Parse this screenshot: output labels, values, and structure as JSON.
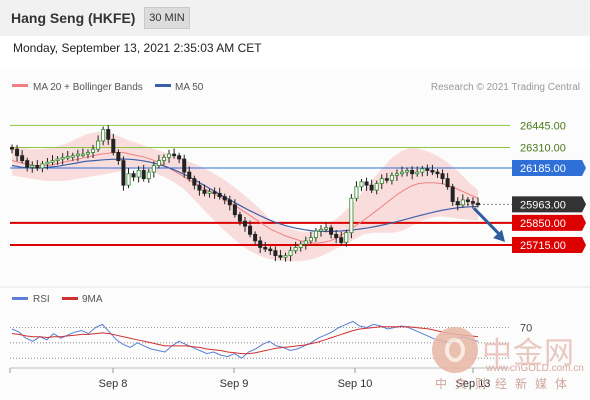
{
  "header": {
    "instrument": "Hang Seng (HKFE)",
    "timeframe": "30 MIN",
    "datetime": "Monday, September 13, 2021 2:35:03 AM CET"
  },
  "legend": {
    "ma20_label": "MA 20 + Bollinger Bands",
    "ma50_label": "MA 50",
    "credit": "Research © 2021 Trading Central",
    "rsi_label": "RSI",
    "ma9_label": "9MA"
  },
  "colors": {
    "ma20": "#f08080",
    "bollinger_fill": "#f8d3d3",
    "ma50": "#3d5fa8",
    "resistance": "#8cc63f",
    "pivot_blue": "#2e6fd8",
    "support": "#dd0000",
    "arrow": "#2f5d9e",
    "rsi": "#5b7fd6",
    "rsi_ma": "#d03030"
  },
  "chart_data": [
    {
      "type": "candlestick",
      "x_labels": [
        "Sep 8",
        "Sep 9",
        "Sep 10",
        "Sep 13"
      ],
      "price_levels": [
        {
          "value": 26445.0,
          "label": "26445.00",
          "kind": "resistance"
        },
        {
          "value": 26310.0,
          "label": "26310.00",
          "kind": "resistance"
        },
        {
          "value": 26185.0,
          "label": "26185.00",
          "kind": "pivot"
        },
        {
          "value": 25963.0,
          "label": "25963.00",
          "kind": "last"
        },
        {
          "value": 25850.0,
          "label": "25850.00",
          "kind": "support"
        },
        {
          "value": 25715.0,
          "label": "25715.00",
          "kind": "support"
        }
      ],
      "ylim": [
        25550,
        26600
      ],
      "closes": [
        26300,
        26260,
        26230,
        26190,
        26200,
        26185,
        26210,
        26220,
        26230,
        26240,
        26250,
        26255,
        26260,
        26270,
        26270,
        26280,
        26300,
        26350,
        26420,
        26360,
        26280,
        26230,
        26080,
        26150,
        26130,
        26170,
        26120,
        26160,
        26200,
        26230,
        26250,
        26270,
        26260,
        26240,
        26160,
        26120,
        26080,
        26050,
        26030,
        26040,
        26030,
        26010,
        25990,
        25960,
        25900,
        25860,
        25830,
        25780,
        25740,
        25700,
        25690,
        25680,
        25650,
        25640,
        25650,
        25680,
        25700,
        25720,
        25740,
        25760,
        25800,
        25810,
        25820,
        25780,
        25760,
        25730,
        25790,
        26000,
        26070,
        26100,
        26080,
        26050,
        26090,
        26120,
        26110,
        26140,
        26150,
        26160,
        26170,
        26150,
        26160,
        26180,
        26170,
        26160,
        26150,
        26120,
        26070,
        25980,
        25960,
        25990,
        25980,
        25970,
        25963
      ],
      "ma20": [
        26230,
        26220,
        26210,
        26200,
        26200,
        26200,
        26210,
        26220,
        26230,
        26240,
        26250,
        26260,
        26270,
        26275,
        26280,
        26280,
        26270,
        26260,
        26250,
        26235,
        26215,
        26190,
        26165,
        26140,
        26110,
        26085,
        26060,
        26035,
        26010,
        25985,
        25960,
        25930,
        25900,
        25870,
        25840,
        25810,
        25790,
        25770,
        25755,
        25740,
        25730,
        25725,
        25730,
        25740,
        25760,
        25790,
        25820,
        25850,
        25880,
        25915,
        25950,
        25985,
        26020,
        26050,
        26075,
        26090,
        26095,
        26095,
        26090,
        26080,
        26060,
        26040,
        26020,
        26000
      ],
      "bb_upper": [
        26320,
        26310,
        26300,
        26300,
        26305,
        26320,
        26340,
        26370,
        26395,
        26405,
        26400,
        26385,
        26360,
        26340,
        26320,
        26300,
        26280,
        26260,
        26240,
        26215,
        26190,
        26160,
        26125,
        26085,
        26040,
        25990,
        25940,
        25880,
        25840,
        25820,
        25800,
        25795,
        25805,
        25830,
        25870,
        25920,
        25980,
        26050,
        26120,
        26190,
        26250,
        26290,
        26310,
        26300,
        26280,
        26250,
        26210,
        26160,
        26100,
        26050
      ],
      "bb_lower": [
        26140,
        26130,
        26120,
        26110,
        26105,
        26105,
        26110,
        26120,
        26130,
        26140,
        26150,
        26160,
        26175,
        26180,
        26170,
        26155,
        26130,
        26100,
        26060,
        26000,
        25940,
        25880,
        25820,
        25770,
        25720,
        25680,
        25650,
        25630,
        25620,
        25615,
        25615,
        25620,
        25635,
        25660,
        25690,
        25720,
        25750,
        25780,
        25790,
        25790,
        25790,
        25800,
        25830,
        25860,
        25880,
        25890,
        25885,
        25875,
        25870,
        25865
      ],
      "ma50": [
        26200,
        26190,
        26185,
        26185,
        26190,
        26195,
        26205,
        26215,
        26225,
        26230,
        26235,
        26238,
        26240,
        26238,
        26232,
        26222,
        26208,
        26190,
        26168,
        26142,
        26112,
        26080,
        26048,
        26015,
        25985,
        25955,
        25925,
        25898,
        25872,
        25850,
        25832,
        25818,
        25808,
        25800,
        25798,
        25798,
        25800,
        25805,
        25812,
        25820,
        25830,
        25842,
        25856,
        25870,
        25885,
        25900,
        25914,
        25926,
        25936,
        25944,
        25948,
        25950
      ],
      "projection": {
        "from": 25963,
        "to": 25715
      }
    },
    {
      "type": "line",
      "title": "RSI",
      "ylim": [
        25,
        85
      ],
      "levels": [
        {
          "value": 70,
          "label": "70"
        },
        {
          "value": 50,
          "label": ""
        },
        {
          "value": 30,
          "label": ""
        }
      ],
      "series": [
        {
          "name": "RSI",
          "values": [
            68,
            64,
            56,
            52,
            58,
            54,
            62,
            56,
            60,
            64,
            66,
            62,
            70,
            74,
            64,
            54,
            48,
            44,
            50,
            46,
            42,
            40,
            38,
            46,
            52,
            48,
            44,
            40,
            36,
            38,
            34,
            32,
            36,
            30,
            38,
            42,
            48,
            52,
            46,
            44,
            40,
            42,
            46,
            50,
            56,
            60,
            64,
            70,
            74,
            78,
            72,
            70,
            74,
            72,
            68,
            70,
            72,
            70,
            66,
            62,
            58,
            54,
            52,
            50,
            56,
            58,
            54,
            52
          ]
        },
        {
          "name": "9MA",
          "values": [
            62,
            61,
            59,
            58,
            58,
            57,
            58,
            58,
            59,
            60,
            61,
            61,
            62,
            63,
            62,
            60,
            58,
            56,
            54,
            52,
            50,
            48,
            46,
            46,
            46,
            46,
            45,
            44,
            42,
            41,
            40,
            38,
            37,
            36,
            36,
            37,
            39,
            41,
            43,
            44,
            45,
            46,
            47,
            49,
            51,
            54,
            57,
            60,
            63,
            66,
            68,
            69,
            70,
            71,
            71,
            71,
            71,
            71,
            70,
            69,
            68,
            66,
            64,
            62,
            61,
            60,
            59,
            58
          ]
        }
      ]
    }
  ]
}
